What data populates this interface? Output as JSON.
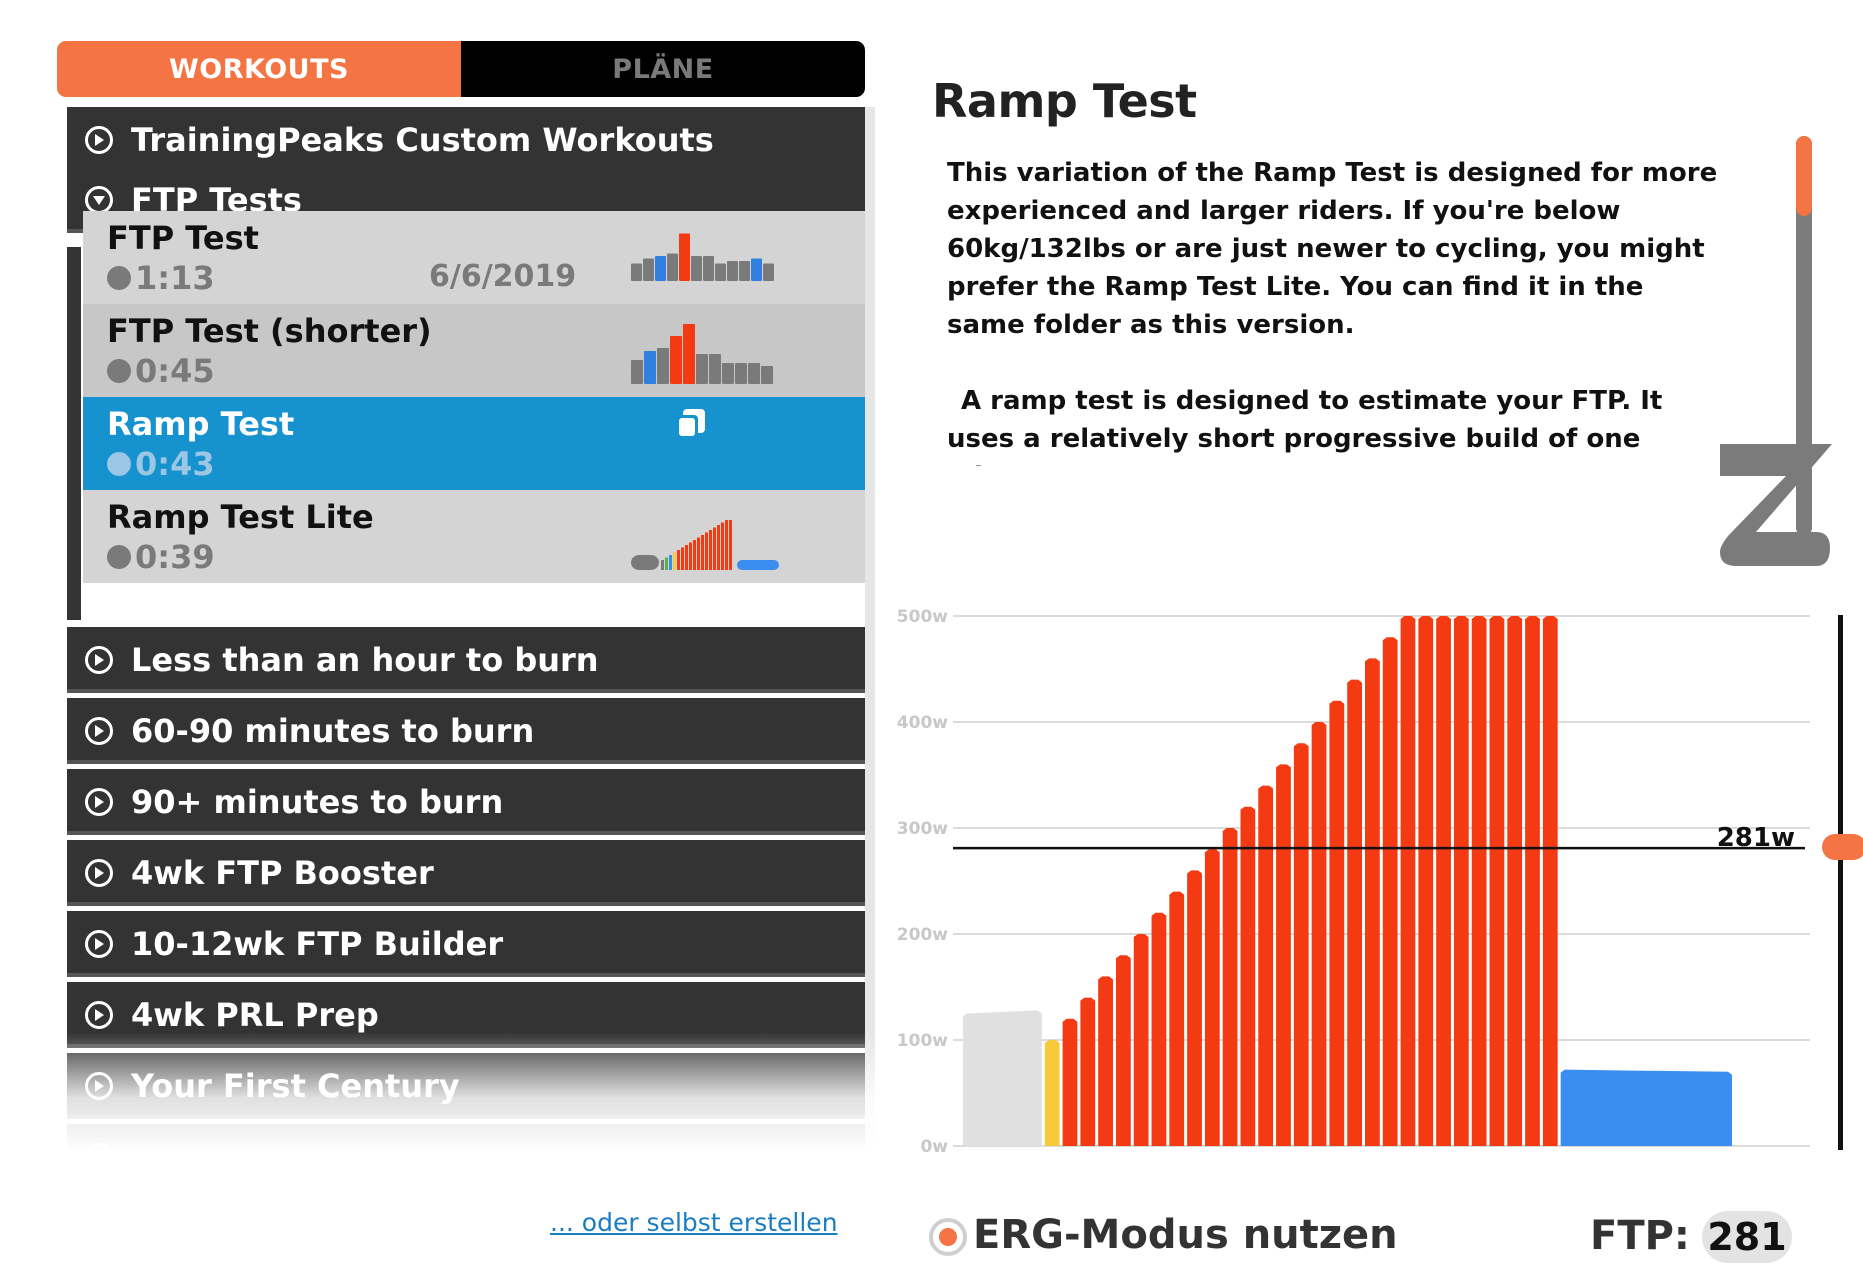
{
  "tabs": {
    "workouts": "WORKOUTS",
    "plans": "PLÄNE"
  },
  "folders_top": [
    {
      "label": "TrainingPeaks Custom Workouts"
    },
    {
      "label": "FTP Tests"
    }
  ],
  "workouts": [
    {
      "title": "FTP Test",
      "duration": "1:13",
      "date": "6/6/2019"
    },
    {
      "title": "FTP Test (shorter)",
      "duration": "0:45",
      "date": ""
    },
    {
      "title": "Ramp Test",
      "duration": "0:43",
      "date": ""
    },
    {
      "title": "Ramp Test Lite",
      "duration": "0:39",
      "date": ""
    }
  ],
  "folders_bottom": [
    {
      "label": "Less than an hour to burn"
    },
    {
      "label": "60-90 minutes to burn"
    },
    {
      "label": "90+ minutes to burn"
    },
    {
      "label": "4wk FTP Booster"
    },
    {
      "label": "10-12wk FTP Builder"
    },
    {
      "label": "4wk PRL Prep"
    },
    {
      "label": "Your First Century"
    }
  ],
  "detail": {
    "title": "Ramp Test",
    "desc_p1": "This variation of the Ramp Test is designed for more experienced and larger riders. If you're below 60kg/132lbs or are just newer to cycling, you might prefer the Ramp Test Lite. You can find it in the same folder as this version.",
    "desc_p2": "A ramp test is designed to estimate your FTP. It uses a relatively short progressive build of one minute steps to"
  },
  "chart_data": {
    "type": "bar",
    "ylim": [
      0,
      500
    ],
    "yticks": [
      "0w",
      "100w",
      "200w",
      "300w",
      "400w",
      "500w"
    ],
    "ftp_line": {
      "value": 281,
      "label": "281w"
    },
    "blocks": [
      {
        "zone": "warmup",
        "color": "#e0e0e0",
        "width": 4.6,
        "start": 125,
        "end": 128
      },
      {
        "zone": "z3",
        "color": "#f7c93c",
        "width": 1,
        "start": 100,
        "end": 100
      },
      {
        "zone": "ramp",
        "color": "#f43a12",
        "width": 1,
        "start": 120,
        "end": 120
      },
      {
        "zone": "ramp",
        "color": "#f43a12",
        "width": 1,
        "start": 140,
        "end": 140
      },
      {
        "zone": "ramp",
        "color": "#f43a12",
        "width": 1,
        "start": 160,
        "end": 160
      },
      {
        "zone": "ramp",
        "color": "#f43a12",
        "width": 1,
        "start": 180,
        "end": 180
      },
      {
        "zone": "ramp",
        "color": "#f43a12",
        "width": 1,
        "start": 200,
        "end": 200
      },
      {
        "zone": "ramp",
        "color": "#f43a12",
        "width": 1,
        "start": 220,
        "end": 220
      },
      {
        "zone": "ramp",
        "color": "#f43a12",
        "width": 1,
        "start": 240,
        "end": 240
      },
      {
        "zone": "ramp",
        "color": "#f43a12",
        "width": 1,
        "start": 260,
        "end": 260
      },
      {
        "zone": "ramp",
        "color": "#f43a12",
        "width": 1,
        "start": 280,
        "end": 280
      },
      {
        "zone": "ramp",
        "color": "#f43a12",
        "width": 1,
        "start": 300,
        "end": 300
      },
      {
        "zone": "ramp",
        "color": "#f43a12",
        "width": 1,
        "start": 320,
        "end": 320
      },
      {
        "zone": "ramp",
        "color": "#f43a12",
        "width": 1,
        "start": 340,
        "end": 340
      },
      {
        "zone": "ramp",
        "color": "#f43a12",
        "width": 1,
        "start": 360,
        "end": 360
      },
      {
        "zone": "ramp",
        "color": "#f43a12",
        "width": 1,
        "start": 380,
        "end": 380
      },
      {
        "zone": "ramp",
        "color": "#f43a12",
        "width": 1,
        "start": 400,
        "end": 400
      },
      {
        "zone": "ramp",
        "color": "#f43a12",
        "width": 1,
        "start": 420,
        "end": 420
      },
      {
        "zone": "ramp",
        "color": "#f43a12",
        "width": 1,
        "start": 440,
        "end": 440
      },
      {
        "zone": "ramp",
        "color": "#f43a12",
        "width": 1,
        "start": 460,
        "end": 460
      },
      {
        "zone": "ramp",
        "color": "#f43a12",
        "width": 1,
        "start": 480,
        "end": 480
      },
      {
        "zone": "ramp",
        "color": "#f43a12",
        "width": 1,
        "start": 500,
        "end": 500
      },
      {
        "zone": "ramp",
        "color": "#f43a12",
        "width": 1,
        "start": 500,
        "end": 500
      },
      {
        "zone": "ramp",
        "color": "#f43a12",
        "width": 1,
        "start": 500,
        "end": 500
      },
      {
        "zone": "ramp",
        "color": "#f43a12",
        "width": 1,
        "start": 500,
        "end": 500
      },
      {
        "zone": "ramp",
        "color": "#f43a12",
        "width": 1,
        "start": 500,
        "end": 500
      },
      {
        "zone": "ramp",
        "color": "#f43a12",
        "width": 1,
        "start": 500,
        "end": 500
      },
      {
        "zone": "ramp",
        "color": "#f43a12",
        "width": 1,
        "start": 500,
        "end": 500
      },
      {
        "zone": "ramp",
        "color": "#f43a12",
        "width": 1,
        "start": 500,
        "end": 500
      },
      {
        "zone": "ramp",
        "color": "#f43a12",
        "width": 1,
        "start": 500,
        "end": 500
      },
      {
        "zone": "cooldown",
        "color": "#3a8ef0",
        "width": 9.8,
        "start": 72,
        "end": 70
      }
    ]
  },
  "mini_profiles": {
    "ftp_test": [
      {
        "c": "#7a7a7a",
        "v": 0.35
      },
      {
        "c": "#7a7a7a",
        "v": 0.45
      },
      {
        "c": "#2f80e0",
        "v": 0.5
      },
      {
        "c": "#7a7a7a",
        "v": 0.55
      },
      {
        "c": "#f43a12",
        "v": 0.95
      },
      {
        "c": "#7a7a7a",
        "v": 0.5
      },
      {
        "c": "#7a7a7a",
        "v": 0.5
      },
      {
        "c": "#7a7a7a",
        "v": 0.35
      },
      {
        "c": "#7a7a7a",
        "v": 0.4
      },
      {
        "c": "#7a7a7a",
        "v": 0.4
      },
      {
        "c": "#2f80e0",
        "v": 0.45
      },
      {
        "c": "#7a7a7a",
        "v": 0.35
      }
    ],
    "ftp_test_shorter": [
      {
        "c": "#7a7a7a",
        "v": 0.4
      },
      {
        "c": "#2f80e0",
        "v": 0.55
      },
      {
        "c": "#7a7a7a",
        "v": 0.6
      },
      {
        "c": "#f43a12",
        "v": 0.8
      },
      {
        "c": "#f43a12",
        "v": 1.0
      },
      {
        "c": "#7a7a7a",
        "v": 0.5
      },
      {
        "c": "#7a7a7a",
        "v": 0.5
      },
      {
        "c": "#7a7a7a",
        "v": 0.35
      },
      {
        "c": "#7a7a7a",
        "v": 0.35
      },
      {
        "c": "#7a7a7a",
        "v": 0.35
      },
      {
        "c": "#7a7a7a",
        "v": 0.3
      }
    ],
    "ramp_lite": {
      "warmup": 0.3,
      "ramp": [
        0.2,
        0.25,
        0.3,
        0.35,
        0.4,
        0.45,
        0.5,
        0.55,
        0.6,
        0.65,
        0.7,
        0.75,
        0.8,
        0.85,
        0.9,
        0.95,
        1.0,
        1.0
      ],
      "cooldown": 0.2
    }
  },
  "footer": {
    "create_link": "... oder selbst erstellen",
    "erg_label": "ERG-Modus nutzen",
    "ftp_label": "FTP:",
    "ftp_value": "281"
  },
  "colors": {
    "accent": "#f47443",
    "selected": "#1692cf",
    "folder_bg": "#333333",
    "zone_red": "#f43a12",
    "zone_blue": "#3a8ef0"
  },
  "icons": {
    "folder_closed": "play-circle-icon",
    "folder_open": "down-circle-icon",
    "duration": "stopwatch-icon",
    "selected_action": "copy-icon",
    "brand": "zwift-logo-icon"
  }
}
